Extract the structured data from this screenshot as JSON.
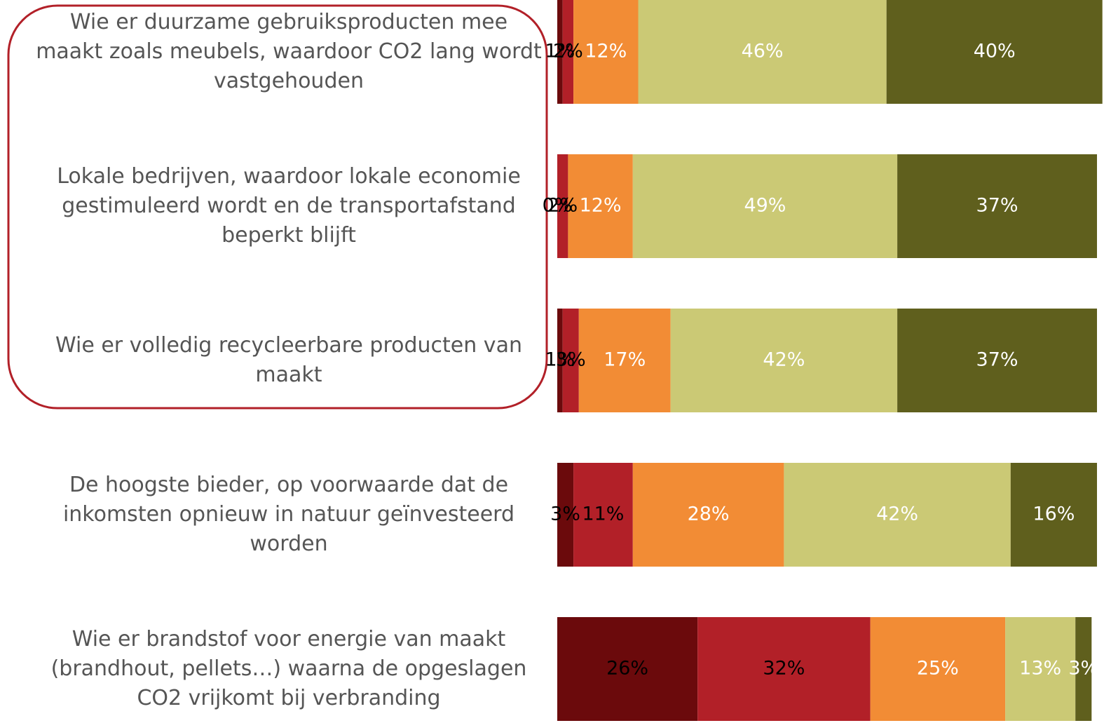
{
  "chart_data": {
    "type": "stacked-barh",
    "categories": [
      "Wie er duurzame gebruiksproducten mee maakt zoals meubels, waardoor CO2 lang wordt vastgehouden",
      "Lokale bedrijven, waardoor lokale economie gestimuleerd wordt en de transportafstand beperkt blijft",
      "Wie er volledig recycleerbare producten van maakt",
      "De hoogste bieder, op voorwaarde dat de inkomsten opnieuw in natuur geïnvesteerd worden",
      "Wie er brandstof voor energie van maakt (brandhout, pellets…) waarna de opgeslagen CO2 vrijkomt bij verbranding"
    ],
    "xlim": [
      0,
      100
    ],
    "series": [
      {
        "color": "#6b0a0c",
        "label_color": "#000000",
        "values": [
          1,
          0,
          1,
          3,
          26
        ],
        "value_labels": [
          "1%",
          "0%",
          "1%",
          "3%",
          "26%"
        ]
      },
      {
        "color": "#b22028",
        "label_color": "#000000",
        "values": [
          2,
          2,
          3,
          11,
          32
        ],
        "value_labels": [
          "2%",
          "2%",
          "3%",
          "11%",
          "32%"
        ]
      },
      {
        "color": "#f28c35",
        "label_color": "#ffffff",
        "values": [
          12,
          12,
          17,
          28,
          25
        ],
        "value_labels": [
          "12%",
          "12%",
          "17%",
          "28%",
          "25%"
        ]
      },
      {
        "color": "#cbc975",
        "label_color": "#ffffff",
        "values": [
          46,
          49,
          42,
          42,
          13
        ],
        "value_labels": [
          "46%",
          "49%",
          "42%",
          "42%",
          "13%"
        ]
      },
      {
        "color": "#5f5f1d",
        "label_color": "#ffffff",
        "values": [
          40,
          37,
          37,
          16,
          3
        ],
        "value_labels": [
          "40%",
          "37%",
          "37%",
          "16%",
          "3%"
        ]
      }
    ]
  }
}
